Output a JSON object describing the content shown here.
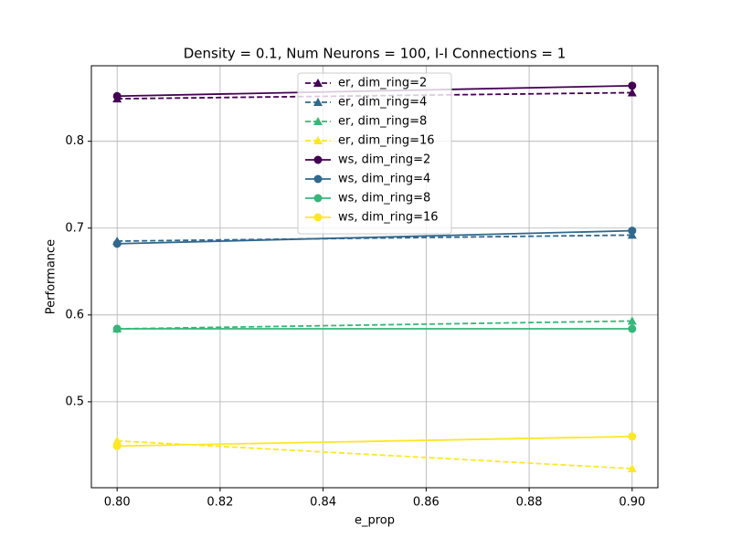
{
  "chart_data": {
    "type": "line",
    "title": "Density = 0.1, Num Neurons = 100, I-I Connections = 1",
    "xlabel": "e_prop",
    "ylabel": "Performance",
    "x": [
      0.8,
      0.9
    ],
    "xlim": [
      0.795,
      0.905
    ],
    "xticks": [
      {
        "value": 0.8,
        "label": "0.80"
      },
      {
        "value": 0.82,
        "label": "0.82"
      },
      {
        "value": 0.84,
        "label": "0.84"
      },
      {
        "value": 0.86,
        "label": "0.86"
      },
      {
        "value": 0.88,
        "label": "0.88"
      },
      {
        "value": 0.9,
        "label": "0.90"
      }
    ],
    "ylim": [
      0.401,
      0.887
    ],
    "yticks": [
      0.5,
      0.6,
      0.7,
      0.8
    ],
    "grid": true,
    "legend": "upper center",
    "series": [
      {
        "name": "er, dim_ring=2",
        "color": "#440154",
        "linestyle": "dashed",
        "marker": "triangle",
        "values": [
          0.849,
          0.856
        ]
      },
      {
        "name": "er, dim_ring=4",
        "color": "#31688e",
        "linestyle": "dashed",
        "marker": "triangle",
        "values": [
          0.685,
          0.692
        ]
      },
      {
        "name": "er, dim_ring=8",
        "color": "#35b779",
        "linestyle": "dashed",
        "marker": "triangle",
        "values": [
          0.584,
          0.593
        ]
      },
      {
        "name": "er, dim_ring=16",
        "color": "#fde725",
        "linestyle": "dashed",
        "marker": "triangle",
        "values": [
          0.455,
          0.423
        ]
      },
      {
        "name": "ws, dim_ring=2",
        "color": "#440154",
        "linestyle": "solid",
        "marker": "circle",
        "values": [
          0.852,
          0.864
        ]
      },
      {
        "name": "ws, dim_ring=4",
        "color": "#31688e",
        "linestyle": "solid",
        "marker": "circle",
        "values": [
          0.682,
          0.697
        ]
      },
      {
        "name": "ws, dim_ring=8",
        "color": "#35b779",
        "linestyle": "solid",
        "marker": "circle",
        "values": [
          0.584,
          0.584
        ]
      },
      {
        "name": "ws, dim_ring=16",
        "color": "#fde725",
        "linestyle": "solid",
        "marker": "circle",
        "values": [
          0.449,
          0.46
        ]
      }
    ]
  }
}
